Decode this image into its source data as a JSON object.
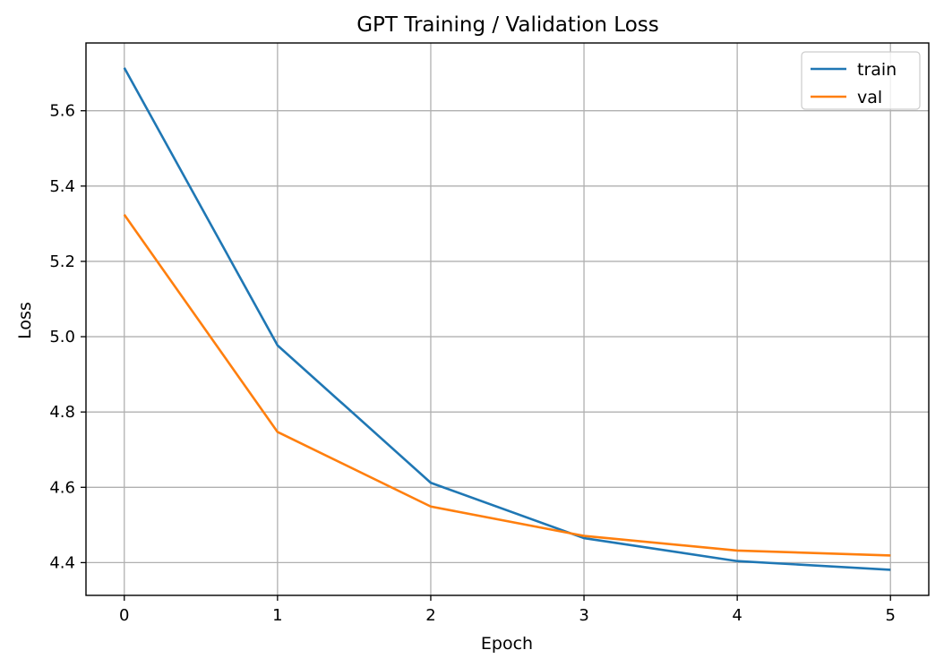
{
  "chart_data": {
    "type": "line",
    "title": "GPT Training / Validation Loss",
    "xlabel": "Epoch",
    "ylabel": "Loss",
    "x": [
      0,
      1,
      2,
      3,
      4,
      5
    ],
    "xticks": [
      "0",
      "1",
      "2",
      "3",
      "4",
      "5"
    ],
    "yticks": [
      "4.4",
      "4.6",
      "4.8",
      "5.0",
      "5.2",
      "5.4",
      "5.6"
    ],
    "ytick_values": [
      4.4,
      4.6,
      4.8,
      5.0,
      5.2,
      5.4,
      5.6
    ],
    "xlim": [
      -0.25,
      5.25
    ],
    "ylim": [
      4.313,
      5.78
    ],
    "grid": true,
    "legend_position": "top-right",
    "series": [
      {
        "name": "train",
        "color": "#1f77b4",
        "values": [
          5.714,
          4.977,
          4.612,
          4.465,
          4.404,
          4.381
        ]
      },
      {
        "name": "val",
        "color": "#ff7f0e",
        "values": [
          5.324,
          4.747,
          4.549,
          4.471,
          4.432,
          4.419
        ]
      }
    ]
  }
}
